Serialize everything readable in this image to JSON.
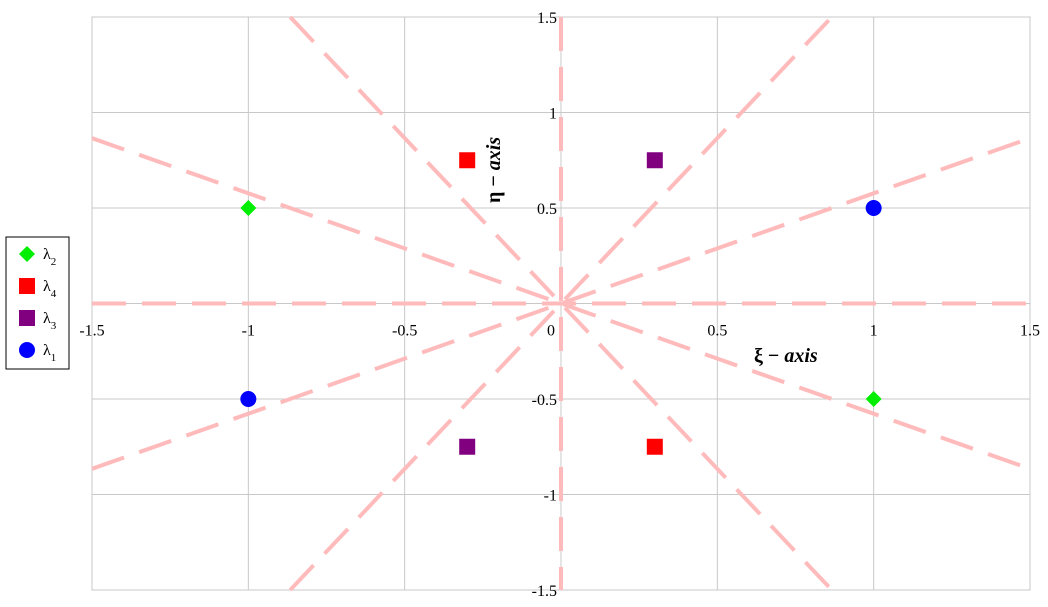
{
  "chart_data": {
    "type": "scatter",
    "title": "",
    "xlabel": {
      "symbol": "ξ",
      "sep": " − ",
      "word": "axis"
    },
    "ylabel": {
      "symbol": "η",
      "sep": " − ",
      "word": "axis"
    },
    "xlim": [
      -1.5,
      1.5
    ],
    "ylim": [
      -1.5,
      1.5
    ],
    "x_ticks": [
      -1.5,
      -1,
      -0.5,
      0,
      0.5,
      1,
      1.5
    ],
    "y_ticks": [
      1.5,
      1,
      0.5,
      -0.5,
      -1,
      -1.5
    ],
    "x_tick_labels": [
      "-1.5",
      "-1",
      "-0.5",
      "0",
      "0.5",
      "1",
      "1.5"
    ],
    "y_tick_labels": [
      "1.5",
      "1",
      "0.5",
      "-0.5",
      "-1",
      "-1.5"
    ],
    "grid": true,
    "legend_position": "left",
    "series": [
      {
        "name": "λ2",
        "label_base": "λ",
        "label_sub": "2",
        "marker": "diamond",
        "color": "#00ee00",
        "points": [
          [
            -1,
            0.5
          ],
          [
            1,
            -0.5
          ]
        ]
      },
      {
        "name": "λ4",
        "label_base": "λ",
        "label_sub": "4",
        "marker": "square",
        "color": "#ff0000",
        "points": [
          [
            -0.3,
            0.75
          ],
          [
            0.3,
            -0.75
          ]
        ]
      },
      {
        "name": "λ3",
        "label_base": "λ",
        "label_sub": "3",
        "marker": "square",
        "color": "#800080",
        "points": [
          [
            0.3,
            0.75
          ],
          [
            -0.3,
            -0.75
          ]
        ]
      },
      {
        "name": "λ1",
        "label_base": "λ",
        "label_sub": "1",
        "marker": "circle",
        "color": "#0000ff",
        "points": [
          [
            1,
            0.5
          ],
          [
            -1,
            -0.5
          ]
        ]
      }
    ],
    "reference_lines": {
      "style": "dashed",
      "color": "#ffbbbb",
      "slopes": [
        0,
        0.577,
        1.732,
        -0.577,
        -1.732
      ],
      "vertical": true
    }
  }
}
